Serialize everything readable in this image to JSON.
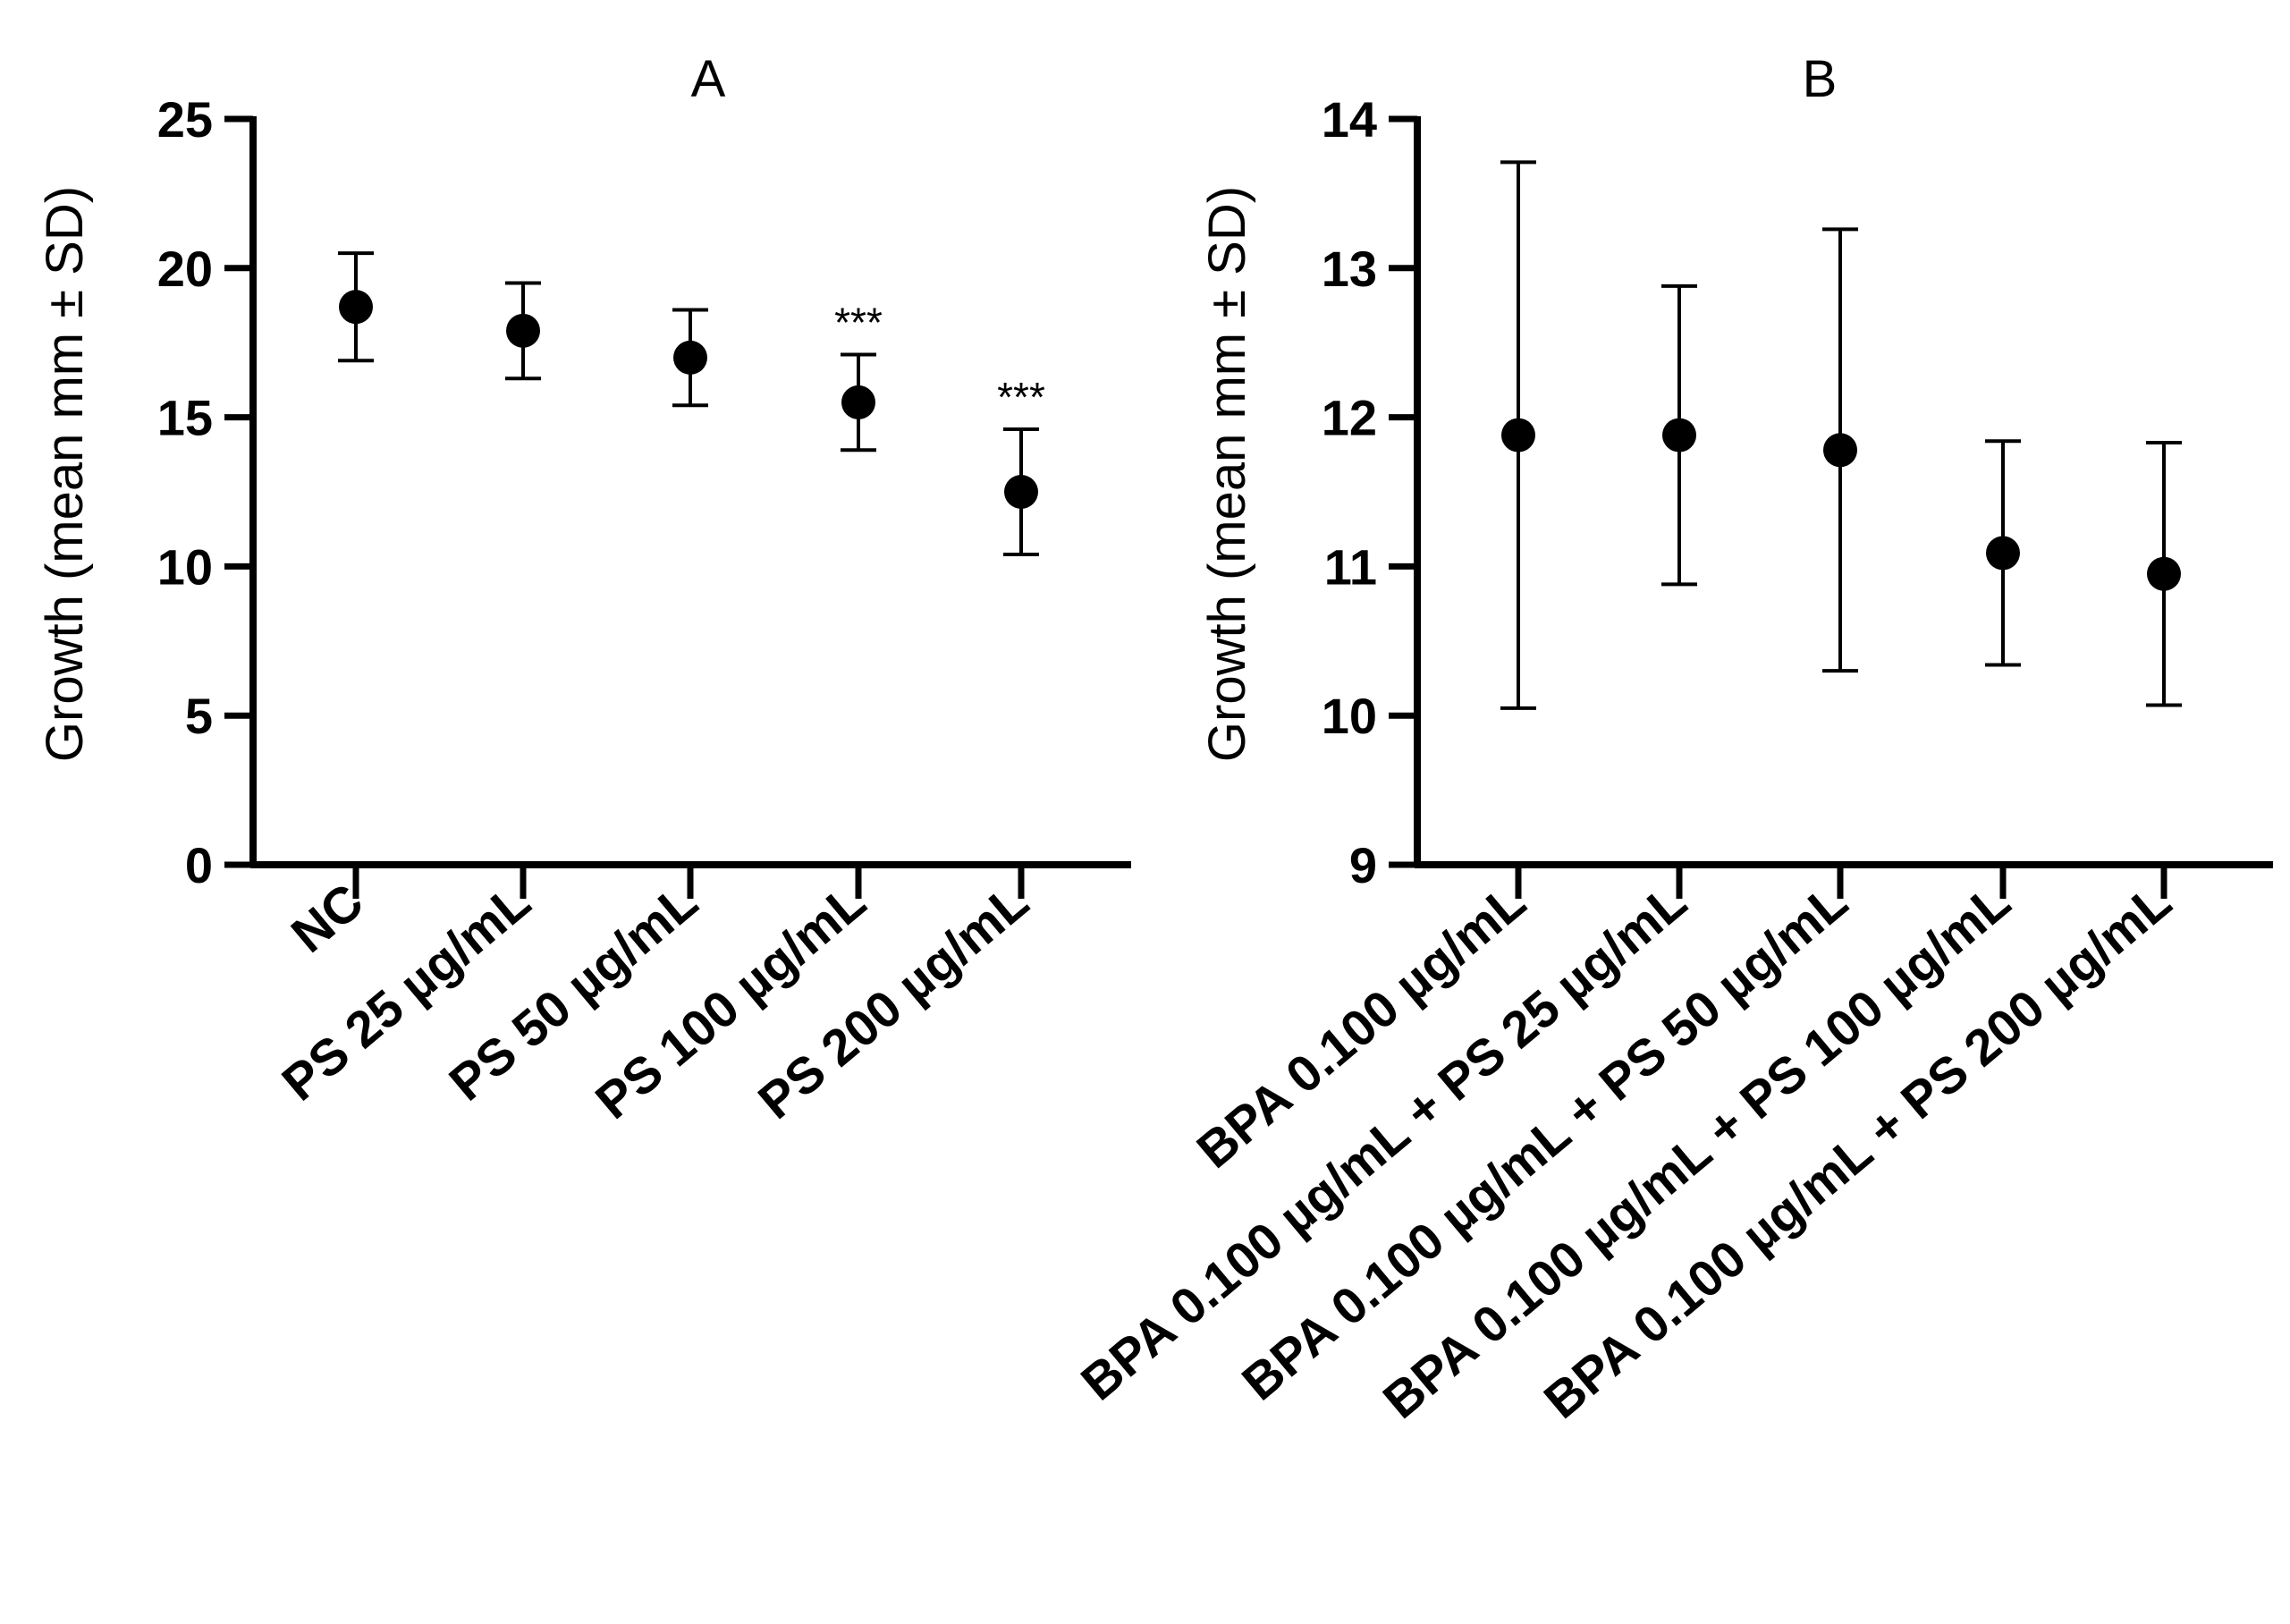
{
  "chart_data": [
    {
      "type": "scatter",
      "title": "A",
      "xlabel": "",
      "ylabel": "Growth (mean mm ± SD)",
      "ylim": [
        0,
        25
      ],
      "yticks": [
        0,
        5,
        10,
        15,
        20,
        25
      ],
      "categories": [
        "NC",
        "PS 25 µg/mL",
        "PS 50 µg/mL",
        "PS 100 µg/mL",
        "PS 200 µg/mL"
      ],
      "values": [
        18.7,
        17.9,
        17.0,
        15.5,
        12.5
      ],
      "sd": [
        1.8,
        1.6,
        1.6,
        1.6,
        2.1
      ],
      "annotations": [
        "",
        "",
        "",
        "***",
        "***"
      ]
    },
    {
      "type": "scatter",
      "title": "B",
      "xlabel": "",
      "ylabel": "Growth (mean mm ± SD)",
      "ylim": [
        9,
        14
      ],
      "yticks": [
        9,
        10,
        11,
        12,
        13,
        14
      ],
      "categories": [
        "BPA 0.100 µg/mL",
        "BPA 0.100 µg/mL + PS 25 µg/mL",
        "BPA 0.100 µg/mL + PS 50 µg/mL",
        "BPA 0.100 µg/mL + PS 100 µg/mL",
        "BPA 0.100 µg/mL + PS 200 µg/mL"
      ],
      "values": [
        11.88,
        11.88,
        11.78,
        11.09,
        10.95
      ],
      "sd": [
        1.83,
        1.0,
        1.48,
        0.75,
        0.88
      ],
      "annotations": [
        "",
        "",
        "",
        "",
        ""
      ]
    }
  ]
}
